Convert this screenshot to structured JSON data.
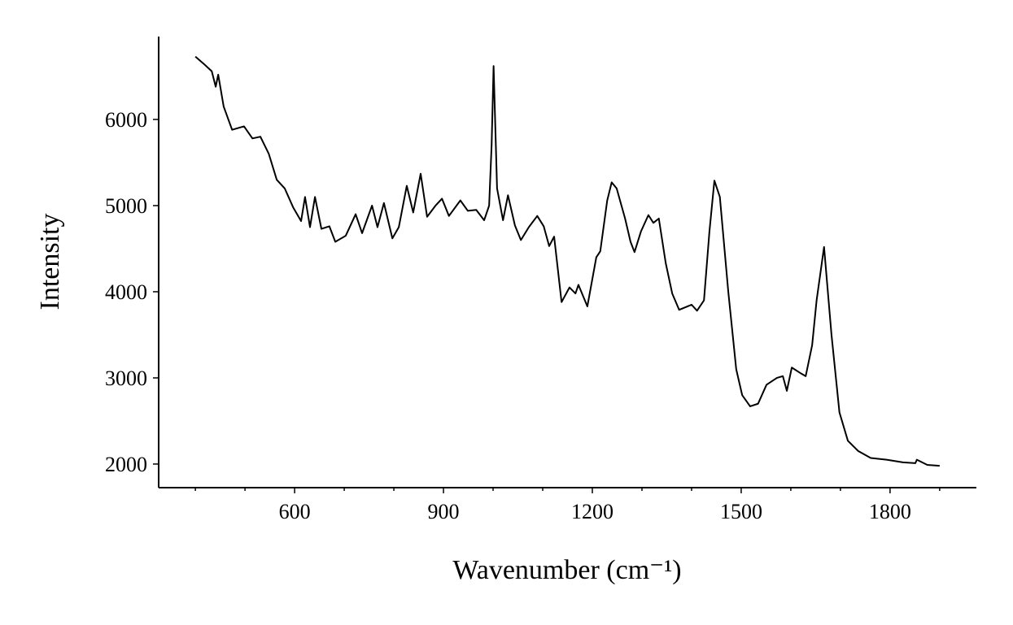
{
  "chart_data": {
    "type": "line",
    "xlabel": "Wavenumber (cm⁻¹)",
    "ylabel": "Intensity",
    "xlim": [
      326,
      1974
    ],
    "ylim": [
      1726,
      6962
    ],
    "xticks": [
      600,
      900,
      1200,
      1500,
      1800
    ],
    "xminorticks": [
      400,
      500,
      700,
      800,
      1000,
      1100,
      1300,
      1400,
      1600,
      1700,
      1900
    ],
    "yticks": [
      2000,
      3000,
      4000,
      5000,
      6000
    ],
    "grid": false,
    "series": [
      {
        "color": "#000000",
        "x": [
          400,
          416,
          433,
          441,
          446,
          457,
          474,
          498,
          515,
          531,
          548,
          564,
          580,
          597,
          613,
          621,
          631,
          641,
          654,
          670,
          682,
          703,
          723,
          736,
          756,
          767,
          780,
          797,
          810,
          826,
          839,
          854,
          867,
          884,
          897,
          911,
          934,
          949,
          966,
          982,
          992,
          997,
          1001,
          1008,
          1020,
          1030,
          1044,
          1056,
          1072,
          1089,
          1102,
          1113,
          1123,
          1138,
          1154,
          1166,
          1172,
          1190,
          1208,
          1216,
          1230,
          1239,
          1249,
          1266,
          1277,
          1285,
          1298,
          1313,
          1323,
          1334,
          1348,
          1361,
          1375,
          1392,
          1400,
          1411,
          1425,
          1436,
          1446,
          1457,
          1474,
          1490,
          1502,
          1518,
          1534,
          1551,
          1572,
          1584,
          1592,
          1602,
          1621,
          1630,
          1643,
          1652,
          1667,
          1682,
          1698,
          1715,
          1736,
          1761,
          1793,
          1826,
          1851,
          1854,
          1875,
          1900
        ],
        "values": [
          6730,
          6650,
          6560,
          6380,
          6520,
          6150,
          5880,
          5920,
          5780,
          5800,
          5600,
          5300,
          5200,
          4980,
          4820,
          5100,
          4750,
          5100,
          4730,
          4760,
          4580,
          4650,
          4900,
          4680,
          5000,
          4750,
          5030,
          4620,
          4750,
          5230,
          4920,
          5370,
          4870,
          5000,
          5080,
          4880,
          5060,
          4940,
          4950,
          4830,
          5000,
          5700,
          6620,
          5200,
          4830,
          5120,
          4770,
          4600,
          4750,
          4880,
          4760,
          4530,
          4640,
          3880,
          4050,
          3980,
          4080,
          3830,
          4400,
          4470,
          5060,
          5270,
          5200,
          4850,
          4580,
          4460,
          4700,
          4890,
          4800,
          4850,
          4330,
          3980,
          3790,
          3830,
          3850,
          3780,
          3900,
          4700,
          5290,
          5100,
          4000,
          3100,
          2800,
          2670,
          2700,
          2920,
          3000,
          3020,
          2850,
          3120,
          3050,
          3020,
          3380,
          3900,
          4520,
          3500,
          2600,
          2270,
          2150,
          2070,
          2050,
          2020,
          2010,
          2050,
          1990,
          1980
        ]
      }
    ]
  }
}
